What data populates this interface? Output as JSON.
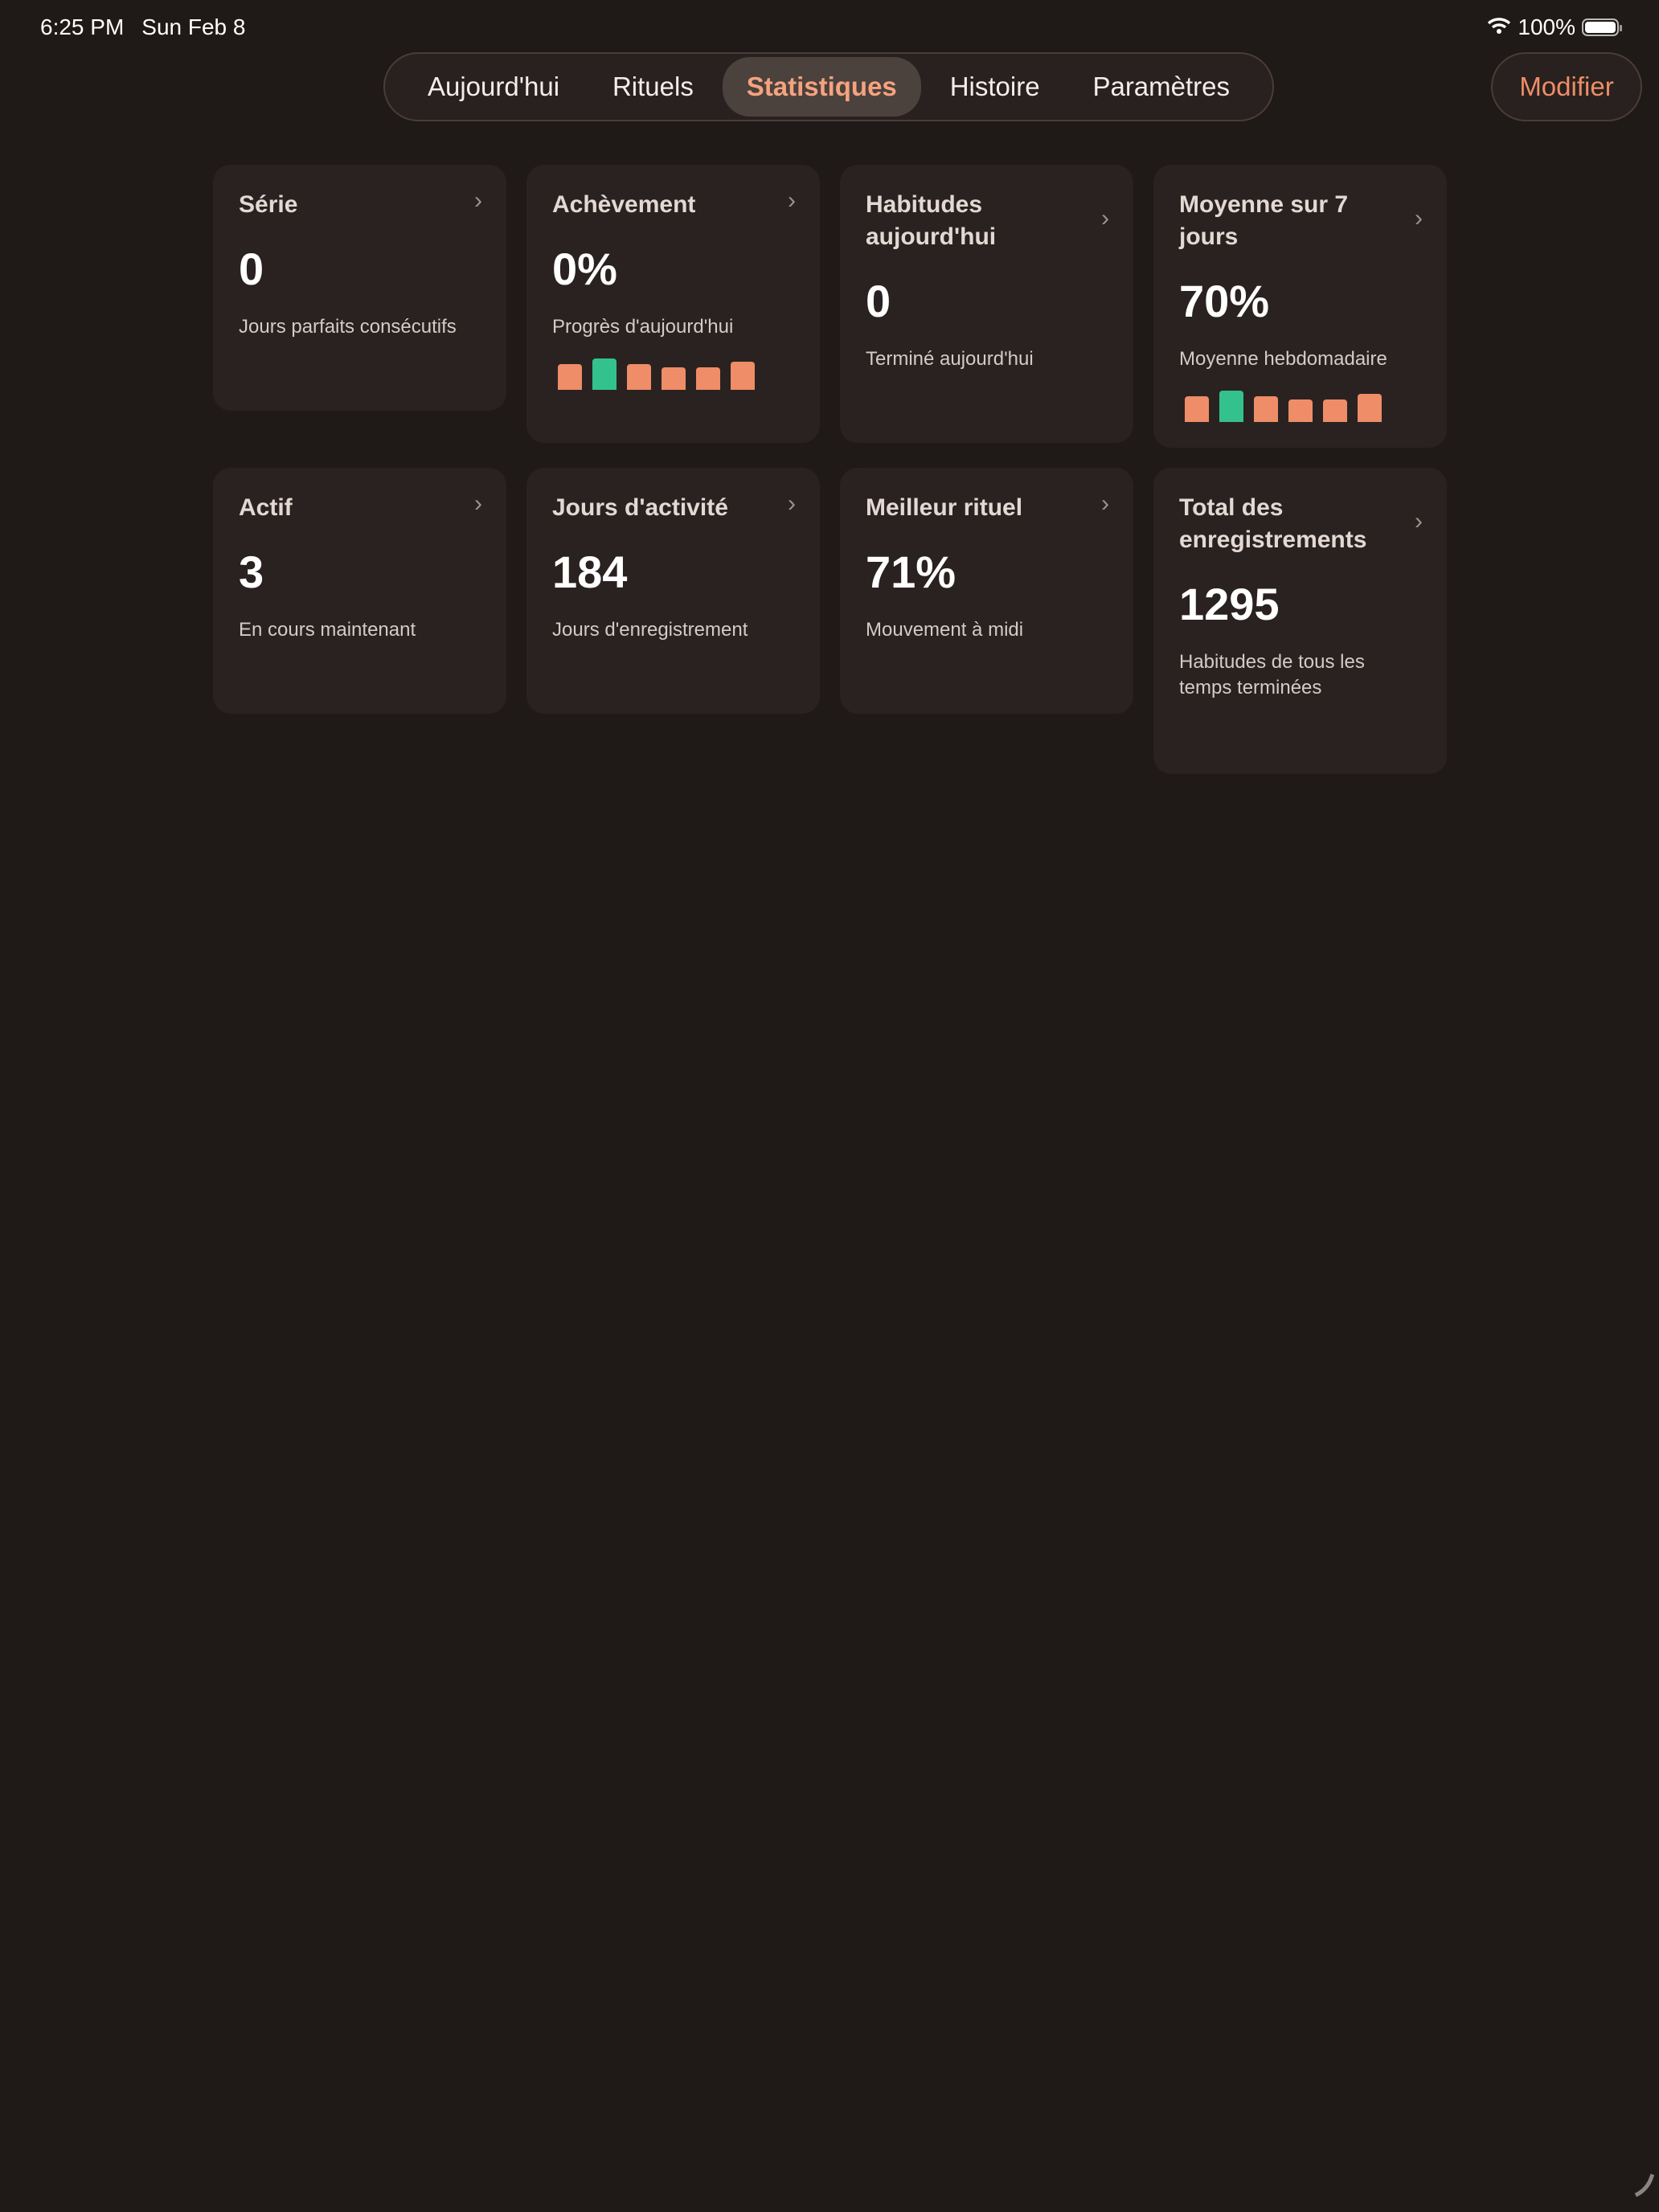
{
  "status_bar": {
    "time": "6:25 PM",
    "date": "Sun Feb 8",
    "battery": "100%"
  },
  "tabs": [
    {
      "label": "Aujourd'hui"
    },
    {
      "label": "Rituels"
    },
    {
      "label": "Statistiques",
      "active": true
    },
    {
      "label": "Histoire"
    },
    {
      "label": "Paramètres"
    }
  ],
  "edit_label": "Modifier",
  "colors": {
    "accent": "#f5a37f",
    "bar": "#ee8d68",
    "bar_highlight": "#33c28d",
    "card": "#2a2220",
    "background": "#1f1917"
  },
  "cards": [
    {
      "title": "Série",
      "value": "0",
      "subtitle": "Jours parfaits consécutifs"
    },
    {
      "title": "Achèvement",
      "value": "0%",
      "subtitle": "Progrès d'aujourd'hui",
      "bars": [
        18,
        22,
        18,
        16,
        16,
        20
      ],
      "highlight": 1
    },
    {
      "title": "Habitudes aujourd'hui",
      "value": "0",
      "subtitle": "Terminé aujourd'hui"
    },
    {
      "title": "Moyenne sur 7 jours",
      "value": "70%",
      "subtitle": "Moyenne hebdomadaire",
      "bars": [
        18,
        22,
        18,
        16,
        16,
        20
      ],
      "highlight": 1
    },
    {
      "title": "Actif",
      "value": "3",
      "subtitle": "En cours maintenant"
    },
    {
      "title": "Jours d'activité",
      "value": "184",
      "subtitle": "Jours d'enregistrement"
    },
    {
      "title": "Meilleur rituel",
      "value": "71%",
      "subtitle": "Mouvement à midi"
    },
    {
      "title": "Total des enregistrements",
      "value": "1295",
      "subtitle": "Habitudes de tous les temps terminées"
    }
  ]
}
